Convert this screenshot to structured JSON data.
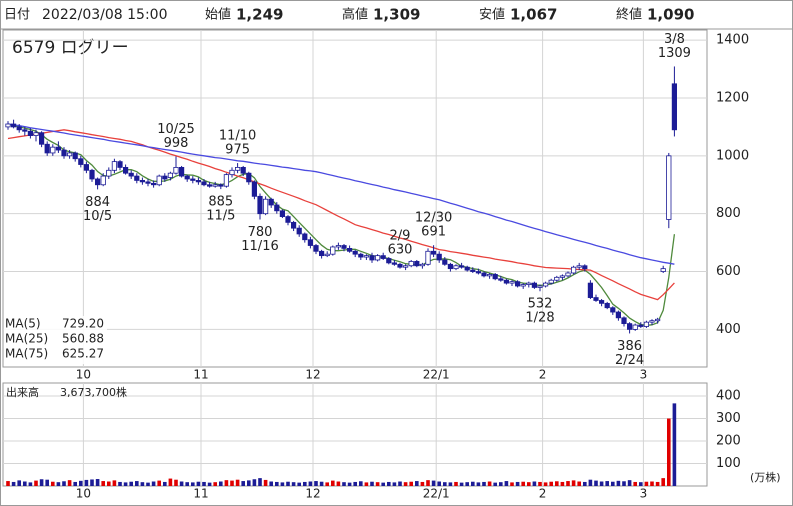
{
  "chart_data": {
    "type": "candlestick",
    "title": "6579 ログリー",
    "header": {
      "date_label": "日付",
      "date": "2022/03/08 15:00",
      "fields": [
        {
          "label": "始値",
          "value": "1,249",
          "color": "#111111"
        },
        {
          "label": "高値",
          "value": "1,309",
          "color": "#e00000"
        },
        {
          "label": "安値",
          "value": "1,067",
          "color": "#1a7a1a"
        },
        {
          "label": "終値",
          "value": "1,090",
          "color": "#111111"
        }
      ]
    },
    "categories": [
      null,
      null,
      null,
      null,
      null,
      null,
      null,
      null,
      null,
      null,
      null,
      null,
      null,
      null,
      "10",
      null,
      null,
      null,
      null,
      null,
      null,
      null,
      null,
      null,
      null,
      null,
      null,
      null,
      null,
      null,
      null,
      null,
      null,
      null,
      null,
      "11",
      null,
      null,
      null,
      null,
      null,
      null,
      null,
      null,
      null,
      null,
      null,
      null,
      null,
      null,
      null,
      null,
      null,
      null,
      null,
      "12",
      null,
      null,
      null,
      null,
      null,
      null,
      null,
      null,
      null,
      null,
      null,
      null,
      null,
      null,
      null,
      null,
      null,
      null,
      null,
      null,
      null,
      "22/1",
      null,
      null,
      null,
      null,
      null,
      null,
      null,
      null,
      null,
      null,
      null,
      null,
      null,
      null,
      null,
      null,
      null,
      null,
      "2",
      null,
      null,
      null,
      null,
      null,
      null,
      null,
      null,
      null,
      null,
      null,
      null,
      null,
      null,
      null,
      null,
      null,
      "3",
      null,
      null,
      null,
      null,
      null
    ],
    "candles": [
      [
        1100,
        1120,
        1090,
        1110
      ],
      [
        1110,
        1125,
        1095,
        1100
      ],
      [
        1100,
        1110,
        1080,
        1090
      ],
      [
        1090,
        1100,
        1070,
        1085
      ],
      [
        1085,
        1095,
        1060,
        1070
      ],
      [
        1070,
        1090,
        1050,
        1080
      ],
      [
        1080,
        1085,
        1030,
        1040
      ],
      [
        1040,
        1050,
        1000,
        1010
      ],
      [
        1010,
        1040,
        1000,
        1030
      ],
      [
        1030,
        1050,
        1010,
        1020
      ],
      [
        1020,
        1030,
        990,
        1000
      ],
      [
        1000,
        1020,
        990,
        1010
      ],
      [
        1010,
        1015,
        980,
        990
      ],
      [
        990,
        1000,
        960,
        970
      ],
      [
        970,
        980,
        940,
        950
      ],
      [
        950,
        955,
        910,
        920
      ],
      [
        920,
        925,
        884,
        900
      ],
      [
        900,
        940,
        895,
        930
      ],
      [
        930,
        960,
        920,
        950
      ],
      [
        950,
        990,
        940,
        980
      ],
      [
        980,
        985,
        950,
        960
      ],
      [
        960,
        970,
        935,
        940
      ],
      [
        940,
        950,
        920,
        930
      ],
      [
        930,
        940,
        905,
        915
      ],
      [
        915,
        925,
        900,
        910
      ],
      [
        910,
        920,
        895,
        905
      ],
      [
        905,
        915,
        890,
        900
      ],
      [
        900,
        935,
        895,
        930
      ],
      [
        930,
        940,
        910,
        920
      ],
      [
        925,
        945,
        915,
        940
      ],
      [
        940,
        998,
        935,
        960
      ],
      [
        960,
        965,
        925,
        930
      ],
      [
        930,
        935,
        910,
        920
      ],
      [
        920,
        930,
        905,
        915
      ],
      [
        915,
        925,
        900,
        910
      ],
      [
        910,
        920,
        895,
        900
      ],
      [
        900,
        910,
        890,
        895
      ],
      [
        895,
        910,
        890,
        900
      ],
      [
        900,
        905,
        885,
        895
      ],
      [
        895,
        940,
        890,
        935
      ],
      [
        935,
        960,
        925,
        950
      ],
      [
        950,
        975,
        940,
        960
      ],
      [
        960,
        965,
        930,
        940
      ],
      [
        940,
        945,
        900,
        910
      ],
      [
        910,
        915,
        850,
        860
      ],
      [
        860,
        870,
        780,
        800
      ],
      [
        800,
        860,
        795,
        850
      ],
      [
        850,
        855,
        820,
        830
      ],
      [
        830,
        840,
        800,
        810
      ],
      [
        810,
        815,
        785,
        790
      ],
      [
        790,
        795,
        760,
        770
      ],
      [
        770,
        775,
        740,
        750
      ],
      [
        750,
        760,
        720,
        730
      ],
      [
        730,
        735,
        700,
        710
      ],
      [
        710,
        720,
        680,
        690
      ],
      [
        690,
        695,
        660,
        670
      ],
      [
        670,
        675,
        645,
        655
      ],
      [
        655,
        670,
        650,
        660
      ],
      [
        660,
        690,
        655,
        685
      ],
      [
        685,
        700,
        675,
        690
      ],
      [
        690,
        695,
        670,
        680
      ],
      [
        680,
        690,
        665,
        670
      ],
      [
        670,
        675,
        650,
        660
      ],
      [
        660,
        665,
        640,
        650
      ],
      [
        650,
        660,
        640,
        655
      ],
      [
        655,
        665,
        630,
        640
      ],
      [
        640,
        660,
        635,
        655
      ],
      [
        655,
        665,
        640,
        645
      ],
      [
        645,
        650,
        625,
        630
      ],
      [
        630,
        640,
        620,
        625
      ],
      [
        625,
        630,
        610,
        615
      ],
      [
        615,
        625,
        605,
        620
      ],
      [
        620,
        640,
        615,
        635
      ],
      [
        635,
        640,
        615,
        620
      ],
      [
        620,
        630,
        610,
        625
      ],
      [
        625,
        680,
        620,
        670
      ],
      [
        670,
        691,
        650,
        660
      ],
      [
        660,
        670,
        630,
        640
      ],
      [
        640,
        650,
        620,
        625
      ],
      [
        625,
        630,
        600,
        610
      ],
      [
        610,
        625,
        605,
        620
      ],
      [
        620,
        630,
        610,
        615
      ],
      [
        615,
        620,
        600,
        605
      ],
      [
        605,
        615,
        595,
        600
      ],
      [
        600,
        610,
        590,
        595
      ],
      [
        595,
        600,
        580,
        585
      ],
      [
        585,
        595,
        575,
        590
      ],
      [
        590,
        595,
        570,
        575
      ],
      [
        575,
        585,
        565,
        570
      ],
      [
        570,
        575,
        555,
        560
      ],
      [
        560,
        570,
        550,
        565
      ],
      [
        565,
        570,
        545,
        550
      ],
      [
        550,
        560,
        540,
        555
      ],
      [
        555,
        565,
        545,
        560
      ],
      [
        560,
        565,
        540,
        545
      ],
      [
        545,
        555,
        532,
        550
      ],
      [
        550,
        565,
        545,
        560
      ],
      [
        560,
        575,
        555,
        570
      ],
      [
        570,
        585,
        565,
        580
      ],
      [
        580,
        590,
        570,
        585
      ],
      [
        585,
        600,
        580,
        595
      ],
      [
        595,
        620,
        590,
        615
      ],
      [
        615,
        630,
        605,
        620
      ],
      [
        620,
        625,
        600,
        610
      ],
      [
        560,
        570,
        505,
        510
      ],
      [
        510,
        520,
        495,
        500
      ],
      [
        500,
        505,
        480,
        490
      ],
      [
        490,
        495,
        470,
        475
      ],
      [
        475,
        480,
        450,
        460
      ],
      [
        460,
        465,
        430,
        440
      ],
      [
        440,
        445,
        410,
        420
      ],
      [
        420,
        425,
        386,
        400
      ],
      [
        400,
        420,
        395,
        415
      ],
      [
        415,
        425,
        405,
        410
      ],
      [
        410,
        430,
        405,
        425
      ],
      [
        425,
        435,
        415,
        430
      ],
      [
        430,
        440,
        420,
        435
      ],
      [
        600,
        620,
        595,
        610
      ],
      [
        780,
        1010,
        750,
        1000
      ],
      [
        1249,
        1309,
        1067,
        1090
      ]
    ],
    "up_color": "#ffffff",
    "down_color": "#1c1c96",
    "edge_color": "#1c1c96",
    "series": [
      {
        "name": "MA(5)",
        "color": "#4f8a3c",
        "latest": "729.20",
        "values": [
          1110,
          1105,
          1100,
          1096,
          1091,
          1085,
          1073,
          1057,
          1046,
          1036,
          1020,
          1014,
          1010,
          1004,
          984,
          968,
          946,
          932,
          930,
          936,
          944,
          952,
          952,
          945,
          931,
          920,
          912,
          912,
          913,
          919,
          930,
          936,
          934,
          933,
          927,
          915,
          908,
          904,
          900,
          905,
          915,
          928,
          936,
          939,
          924,
          894,
          872,
          850,
          830,
          816,
          810,
          790,
          770,
          750,
          730,
          710,
          691,
          677,
          672,
          672,
          674,
          677,
          677,
          670,
          663,
          655,
          652,
          649,
          645,
          639,
          634,
          627,
          625,
          623,
          623,
          634,
          642,
          643,
          644,
          641,
          631,
          618,
          615,
          610,
          607,
          600,
          595,
          589,
          583,
          576,
          572,
          564,
          560,
          558,
          555,
          552,
          554,
          557,
          563,
          569,
          578,
          589,
          599,
          605,
          590,
          568,
          545,
          517,
          487,
          473,
          457,
          439,
          427,
          417,
          414,
          416,
          423,
          466,
          580,
          729.2
        ]
      },
      {
        "name": "MA(25)",
        "color": "#e8413c",
        "latest": "560.88",
        "values": [
          1060,
          1063,
          1066,
          1069,
          1072,
          1075,
          1078,
          1081,
          1084,
          1087,
          1090,
          1087,
          1083,
          1080,
          1077,
          1073,
          1070,
          1067,
          1063,
          1060,
          1057,
          1053,
          1050,
          1044,
          1038,
          1031,
          1025,
          1019,
          1013,
          1006,
          1000,
          994,
          988,
          981,
          975,
          969,
          963,
          956,
          950,
          943,
          937,
          930,
          924,
          917,
          910,
          903,
          896,
          888,
          881,
          874,
          867,
          860,
          853,
          845,
          838,
          831,
          821,
          811,
          801,
          791,
          782,
          772,
          762,
          756,
          751,
          745,
          739,
          733,
          728,
          722,
          716,
          711,
          705,
          699,
          693,
          688,
          682,
          676,
          673,
          669,
          666,
          663,
          660,
          656,
          653,
          650,
          647,
          643,
          640,
          637,
          634,
          630,
          627,
          624,
          620,
          617,
          614,
          613,
          612,
          611,
          610,
          608,
          607,
          606,
          605,
          596,
          586,
          577,
          568,
          558,
          549,
          540,
          530,
          521,
          515,
          509,
          503,
          520,
          540,
          560.88
        ]
      },
      {
        "name": "MA(75)",
        "color": "#4a4ae0",
        "latest": "625.27",
        "values": [
          1110,
          1107,
          1104,
          1101,
          1097,
          1094,
          1091,
          1088,
          1085,
          1082,
          1079,
          1075,
          1072,
          1069,
          1066,
          1063,
          1060,
          1057,
          1053,
          1050,
          1047,
          1044,
          1041,
          1038,
          1035,
          1031,
          1028,
          1025,
          1022,
          1019,
          1016,
          1013,
          1009,
          1006,
          1003,
          1000,
          997,
          994,
          992,
          989,
          986,
          983,
          981,
          978,
          975,
          972,
          970,
          967,
          964,
          961,
          959,
          956,
          953,
          950,
          948,
          945,
          941,
          936,
          932,
          927,
          923,
          919,
          914,
          910,
          905,
          901,
          897,
          892,
          888,
          883,
          879,
          875,
          870,
          866,
          861,
          857,
          852,
          848,
          842,
          836,
          831,
          825,
          819,
          813,
          807,
          802,
          796,
          790,
          784,
          778,
          773,
          767,
          761,
          755,
          749,
          744,
          738,
          733,
          727,
          722,
          717,
          711,
          706,
          701,
          696,
          690,
          685,
          680,
          674,
          669,
          664,
          658,
          653,
          648,
          644,
          640,
          636,
          632,
          629,
          625.27
        ]
      }
    ],
    "annotations": [
      {
        "date": "3/8",
        "value": 1309
      },
      {
        "date": "10/25",
        "value": 998
      },
      {
        "date": "11/10",
        "value": 975
      },
      {
        "date": "10/5",
        "value": 884
      },
      {
        "date": "11/5",
        "value": 885
      },
      {
        "date": "11/16",
        "value": 780
      },
      {
        "date": "12/30",
        "value": 691
      },
      {
        "date": "1/28",
        "value": 532
      },
      {
        "date": "2/9",
        "value": 630
      },
      {
        "date": "2/24",
        "value": 386
      }
    ],
    "ylim": [
      270,
      1435
    ],
    "yticks": [
      400,
      600,
      800,
      1000,
      1200,
      1400
    ],
    "grid": true,
    "volume": {
      "label": "出来高",
      "total": "3,673,700株",
      "unit": "(万株)",
      "up_color": "#e00000",
      "down_color": "#1c1c96",
      "ylim": [
        0,
        458
      ],
      "yticks": [
        100,
        200,
        300,
        400
      ],
      "values": [
        22,
        18,
        25,
        20,
        16,
        24,
        30,
        28,
        19,
        17,
        21,
        26,
        18,
        23,
        27,
        29,
        31,
        22,
        20,
        25,
        18,
        16,
        19,
        22,
        17,
        15,
        20,
        24,
        18,
        33,
        28,
        20,
        17,
        16,
        19,
        18,
        15,
        17,
        20,
        26,
        24,
        28,
        22,
        25,
        30,
        35,
        27,
        20,
        18,
        16,
        19,
        17,
        15,
        18,
        20,
        22,
        19,
        16,
        24,
        20,
        17,
        15,
        18,
        21,
        16,
        19,
        17,
        15,
        18,
        16,
        20,
        17,
        19,
        22,
        18,
        26,
        24,
        20,
        17,
        16,
        18,
        15,
        17,
        19,
        16,
        18,
        20,
        15,
        17,
        22,
        16,
        18,
        19,
        17,
        20,
        18,
        16,
        19,
        21,
        18,
        22,
        25,
        20,
        18,
        28,
        24,
        20,
        22,
        19,
        23,
        21,
        26,
        18,
        17,
        19,
        20,
        18,
        35,
        300,
        367.37
      ]
    }
  }
}
